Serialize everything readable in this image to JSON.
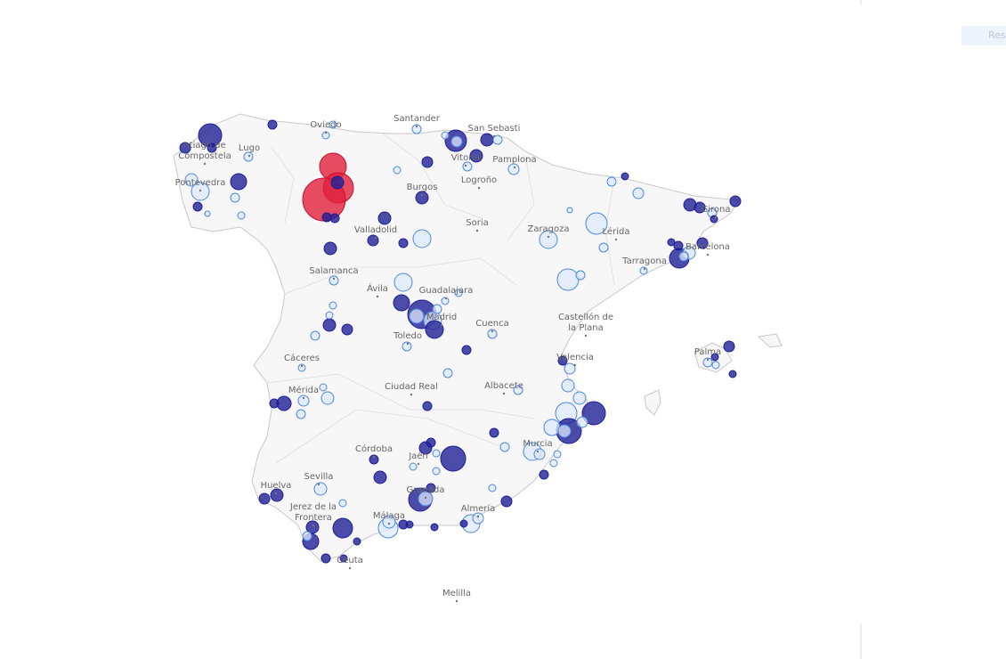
{
  "button": {
    "label": "Res"
  },
  "cities": [
    [
      "Santander"
    ],
    [
      "Oviedo"
    ],
    [
      "San Sebasti"
    ],
    [
      "ntiago de",
      "Compostela"
    ],
    [
      "Lugo"
    ],
    [
      "Pontevedra"
    ],
    [
      "Vitoria"
    ],
    [
      "Pamplona"
    ],
    [
      "Logroño"
    ],
    [
      "Burgos"
    ],
    [
      "Soria"
    ],
    [
      "Valladolid"
    ],
    [
      "Zaragoza"
    ],
    [
      "Lérida"
    ],
    [
      "Girona"
    ],
    [
      "Barcelona"
    ],
    [
      "Tarragona"
    ],
    [
      "Salamanca"
    ],
    [
      "Ávila"
    ],
    [
      "Guadalajara"
    ],
    [
      "Madrid"
    ],
    [
      "Cuenca"
    ],
    [
      "Castellón de",
      "la Plana"
    ],
    [
      "Toledo"
    ],
    [
      "Cáceres"
    ],
    [
      "Valencia"
    ],
    [
      "Palma"
    ],
    [
      "Mérida"
    ],
    [
      "Ciudad Real"
    ],
    [
      "Albacete"
    ],
    [
      "Murcia"
    ],
    [
      "Córdoba"
    ],
    [
      "Jaén"
    ],
    [
      "Sevilla"
    ],
    [
      "Huelva"
    ],
    [
      "Granada"
    ],
    [
      "Almería"
    ],
    [
      "Jerez de la",
      "Frontera"
    ],
    [
      "Málaga"
    ],
    [
      "Ceuta"
    ],
    [
      "Melilla"
    ]
  ]
}
